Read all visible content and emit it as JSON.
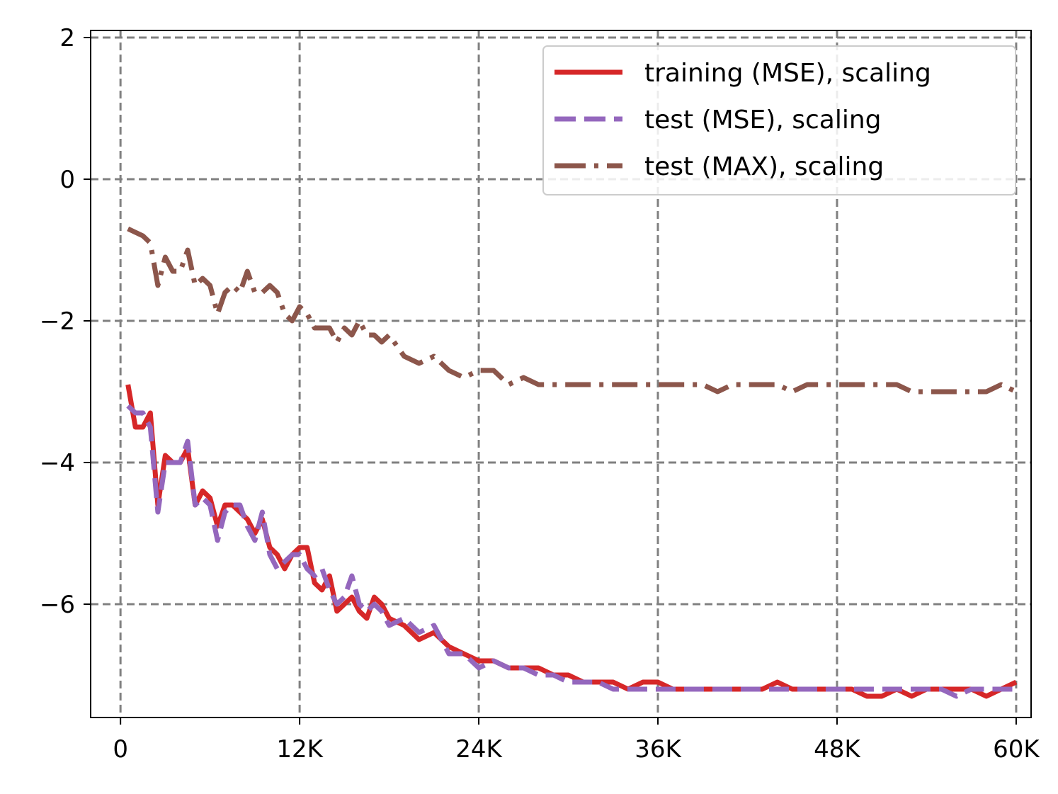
{
  "chart_data": {
    "type": "line",
    "title": "",
    "xlabel": "",
    "ylabel": "",
    "xlim": [
      -2000,
      61000
    ],
    "ylim": [
      -7.6,
      2.1
    ],
    "grid": true,
    "legend_position": "top-right",
    "x_ticks": [
      {
        "value": 0,
        "label": "0"
      },
      {
        "value": 12000,
        "label": "12K"
      },
      {
        "value": 24000,
        "label": "24K"
      },
      {
        "value": 36000,
        "label": "36K"
      },
      {
        "value": 48000,
        "label": "48K"
      },
      {
        "value": 60000,
        "label": "60K"
      }
    ],
    "y_ticks": [
      {
        "value": 2,
        "label": "2"
      },
      {
        "value": 0,
        "label": "0"
      },
      {
        "value": -2,
        "label": "−2"
      },
      {
        "value": -4,
        "label": "−4"
      },
      {
        "value": -6,
        "label": "−6"
      }
    ],
    "x": [
      500,
      1000,
      1500,
      2000,
      2500,
      3000,
      3500,
      4000,
      4500,
      5000,
      5500,
      6000,
      6500,
      7000,
      7500,
      8000,
      8500,
      9000,
      9500,
      10000,
      10500,
      11000,
      11500,
      12000,
      12500,
      13000,
      13500,
      14000,
      14500,
      15000,
      15500,
      16000,
      16500,
      17000,
      17500,
      18000,
      19000,
      20000,
      21000,
      22000,
      23000,
      24000,
      25000,
      26000,
      27000,
      28000,
      29000,
      30000,
      31000,
      32000,
      33000,
      34000,
      35000,
      36000,
      37000,
      38000,
      39000,
      40000,
      41000,
      42000,
      43000,
      44000,
      45000,
      46000,
      47000,
      48000,
      49000,
      50000,
      51000,
      52000,
      53000,
      54000,
      55000,
      56000,
      57000,
      58000,
      59000,
      60000
    ],
    "series": [
      {
        "name": "training (MSE), scaling",
        "color": "#d62728",
        "style": "solid",
        "values": [
          -2.9,
          -3.5,
          -3.5,
          -3.3,
          -4.6,
          -3.9,
          -4.0,
          -4.0,
          -3.8,
          -4.6,
          -4.4,
          -4.5,
          -4.9,
          -4.6,
          -4.6,
          -4.7,
          -4.8,
          -5.0,
          -4.8,
          -5.2,
          -5.3,
          -5.5,
          -5.3,
          -5.2,
          -5.2,
          -5.7,
          -5.8,
          -5.6,
          -6.1,
          -6.0,
          -5.9,
          -6.1,
          -6.2,
          -5.9,
          -6.0,
          -6.2,
          -6.3,
          -6.5,
          -6.4,
          -6.6,
          -6.7,
          -6.8,
          -6.8,
          -6.9,
          -6.9,
          -6.9,
          -7.0,
          -7.0,
          -7.1,
          -7.1,
          -7.1,
          -7.2,
          -7.1,
          -7.1,
          -7.2,
          -7.2,
          -7.2,
          -7.2,
          -7.2,
          -7.2,
          -7.2,
          -7.1,
          -7.2,
          -7.2,
          -7.2,
          -7.2,
          -7.2,
          -7.3,
          -7.3,
          -7.2,
          -7.3,
          -7.2,
          -7.2,
          -7.2,
          -7.2,
          -7.3,
          -7.2,
          -7.1
        ]
      },
      {
        "name": "test (MSE), scaling",
        "color": "#9467bd",
        "style": "dashed",
        "values": [
          -3.2,
          -3.3,
          -3.3,
          -3.5,
          -4.7,
          -4.0,
          -4.0,
          -4.0,
          -3.7,
          -4.6,
          -4.5,
          -4.6,
          -5.1,
          -4.7,
          -4.6,
          -4.6,
          -4.9,
          -5.1,
          -4.7,
          -5.3,
          -5.5,
          -5.4,
          -5.3,
          -5.3,
          -5.5,
          -5.6,
          -5.5,
          -5.8,
          -6.0,
          -5.9,
          -5.6,
          -6.0,
          -6.1,
          -6.0,
          -6.1,
          -6.3,
          -6.2,
          -6.4,
          -6.3,
          -6.7,
          -6.7,
          -6.9,
          -6.8,
          -6.9,
          -6.9,
          -7.0,
          -7.0,
          -7.1,
          -7.1,
          -7.1,
          -7.2,
          -7.2,
          -7.2,
          -7.2,
          -7.2,
          -7.2,
          -7.2,
          -7.2,
          -7.2,
          -7.2,
          -7.2,
          -7.2,
          -7.2,
          -7.2,
          -7.2,
          -7.2,
          -7.2,
          -7.2,
          -7.2,
          -7.2,
          -7.2,
          -7.2,
          -7.2,
          -7.3,
          -7.2,
          -7.2,
          -7.2,
          -7.2
        ]
      },
      {
        "name": "test (MAX), scaling",
        "color": "#8c564b",
        "style": "dashdot",
        "values": [
          -0.7,
          -0.75,
          -0.8,
          -0.9,
          -1.5,
          -1.1,
          -1.3,
          -1.3,
          -1.0,
          -1.5,
          -1.4,
          -1.5,
          -1.9,
          -1.6,
          -1.5,
          -1.6,
          -1.3,
          -1.6,
          -1.6,
          -1.5,
          -1.6,
          -1.9,
          -2.0,
          -1.8,
          -1.9,
          -2.1,
          -2.1,
          -2.1,
          -2.3,
          -2.1,
          -2.2,
          -2.0,
          -2.2,
          -2.2,
          -2.3,
          -2.2,
          -2.5,
          -2.6,
          -2.5,
          -2.7,
          -2.8,
          -2.7,
          -2.7,
          -2.9,
          -2.8,
          -2.9,
          -2.9,
          -2.9,
          -2.9,
          -2.9,
          -2.9,
          -2.9,
          -2.9,
          -2.9,
          -2.9,
          -2.9,
          -2.9,
          -3.0,
          -2.9,
          -2.9,
          -2.9,
          -2.9,
          -3.0,
          -2.9,
          -2.9,
          -2.9,
          -2.9,
          -2.9,
          -2.9,
          -2.9,
          -3.0,
          -3.0,
          -3.0,
          -3.0,
          -3.0,
          -3.0,
          -2.9,
          -3.0
        ]
      }
    ]
  }
}
